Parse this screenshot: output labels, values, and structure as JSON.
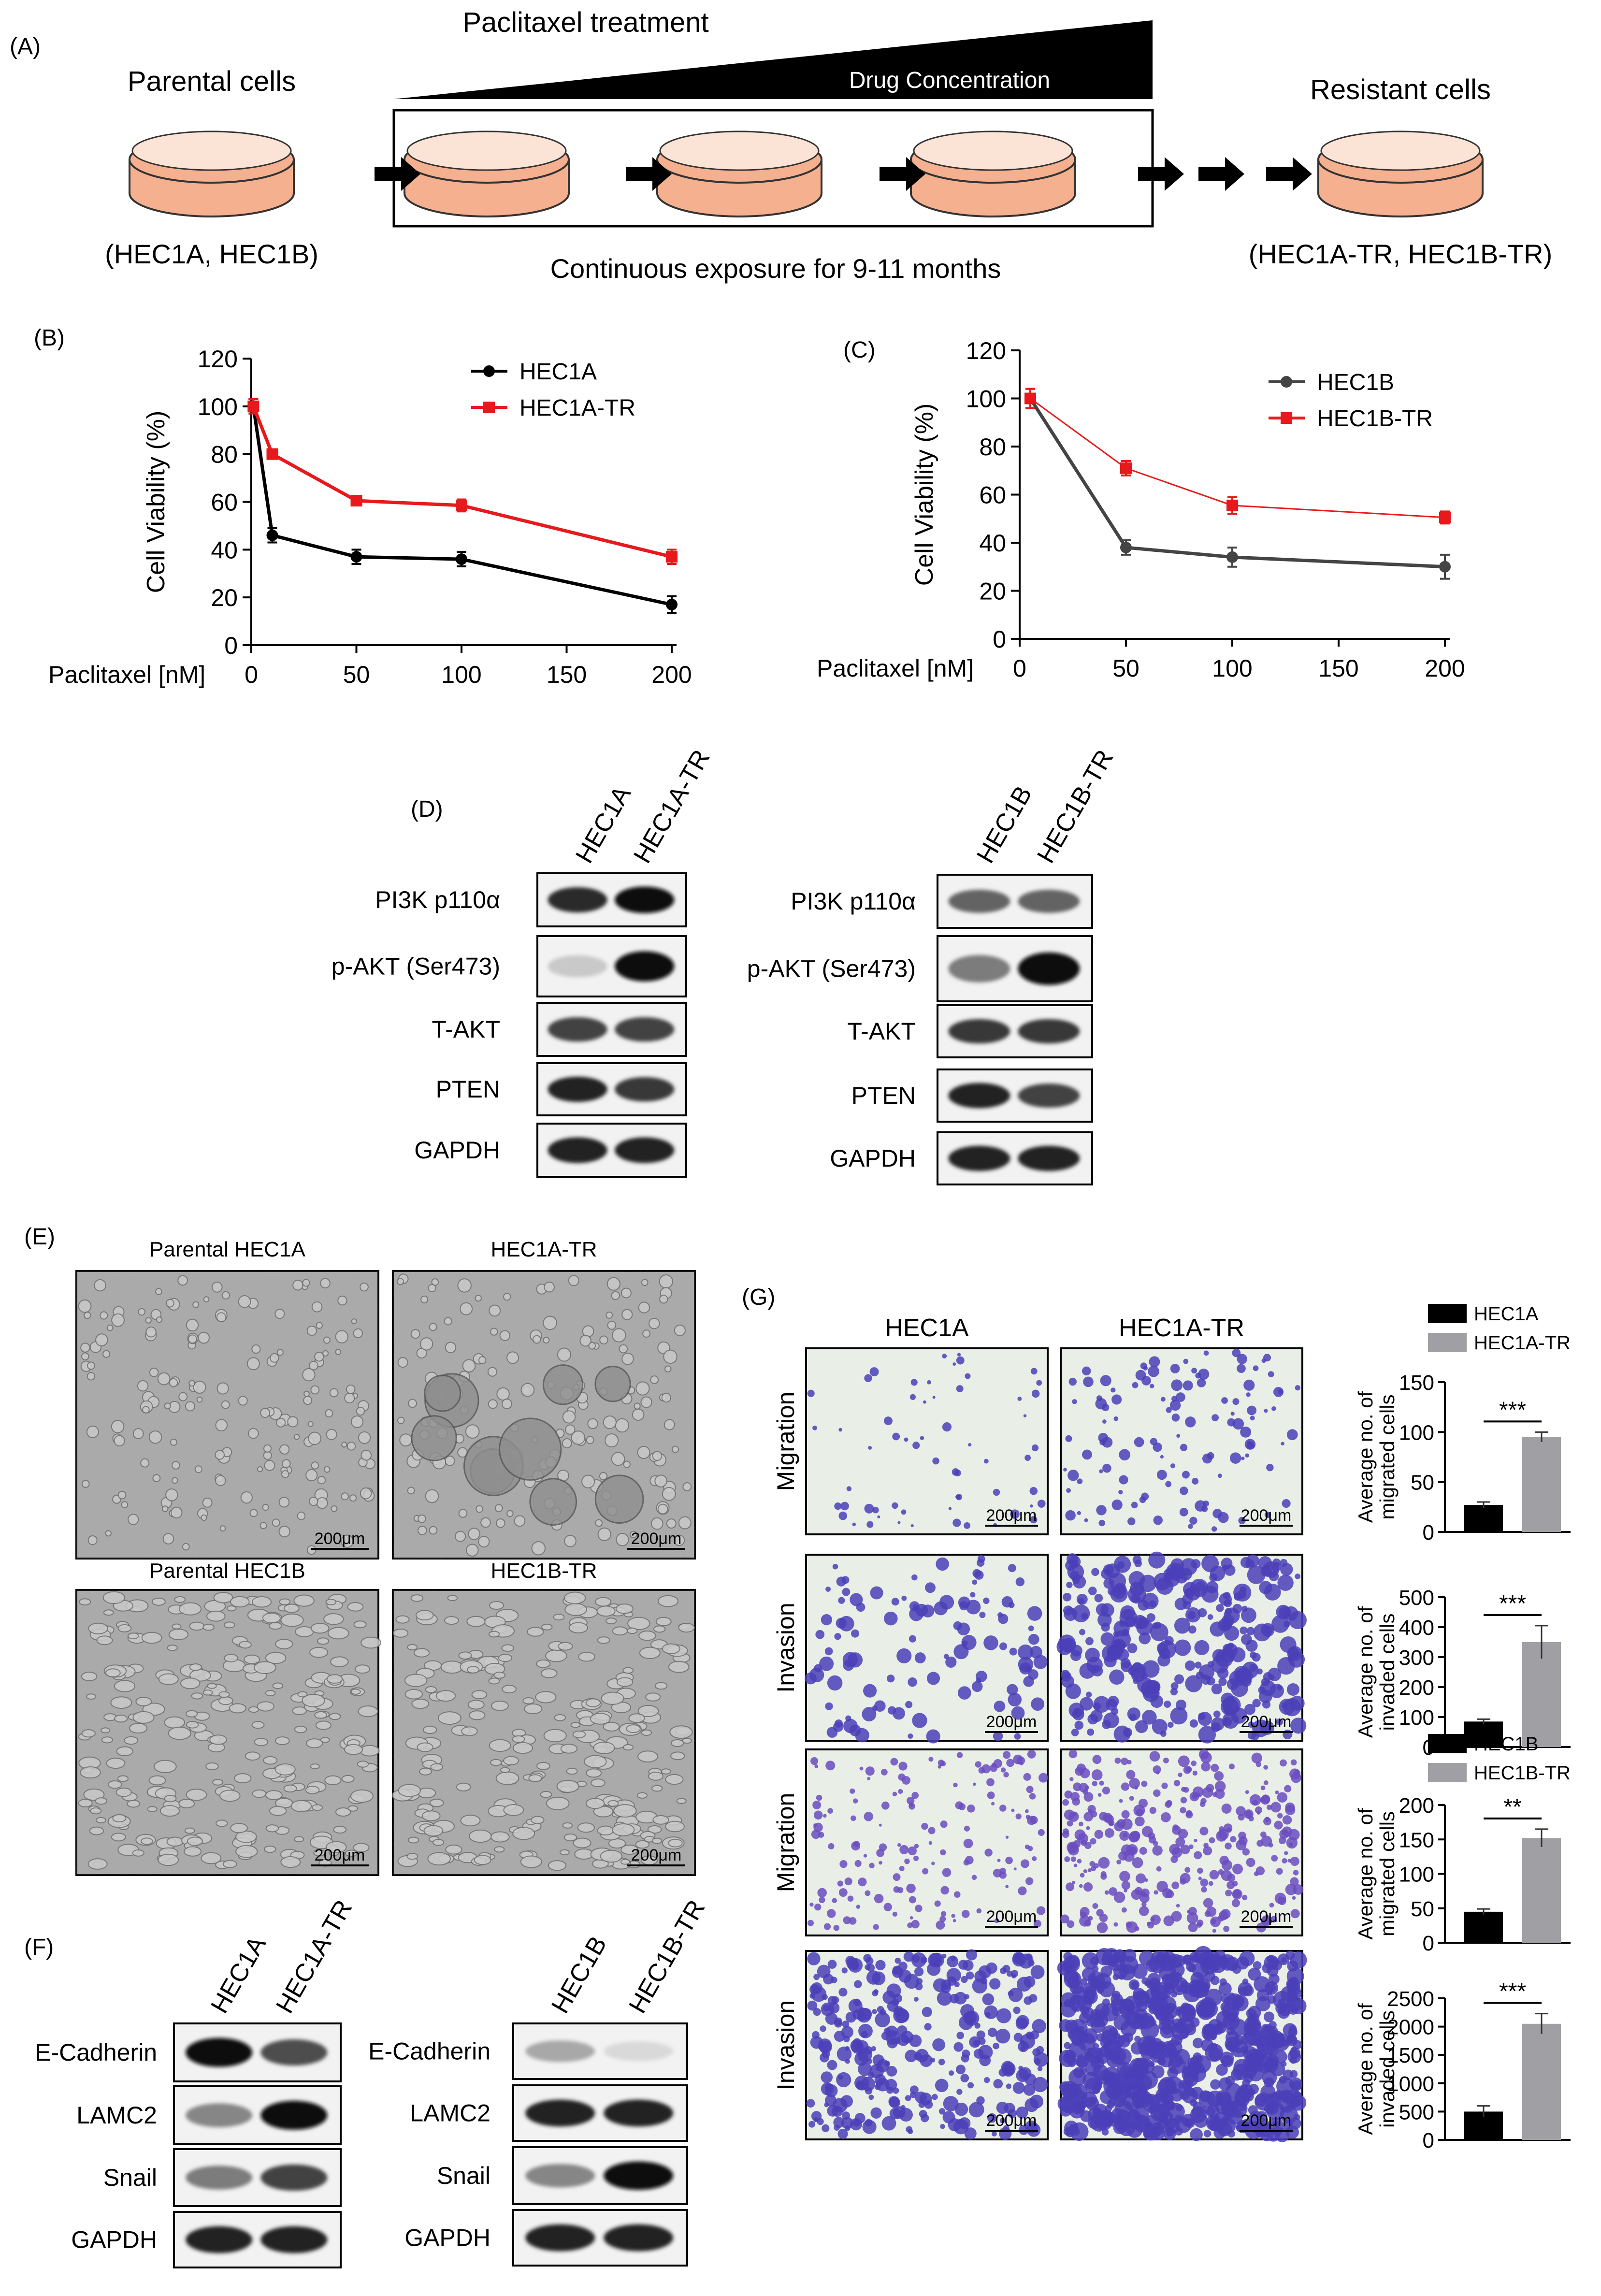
{
  "panel_letters": {
    "a": "(A)",
    "b": "(B)",
    "c": "(C)",
    "d": "(D)",
    "e": "(E)",
    "f": "(F)",
    "g": "(G)"
  },
  "panel_a": {
    "parental_title": "Parental cells",
    "parental_lines": "(HEC1A, HEC1B)",
    "treatment_title": "Paclitaxel treatment",
    "concentration_label": "Drug Concentration",
    "exposure_caption": "Continuous exposure for 9-11 months",
    "resistant_title": "Resistant cells",
    "resistant_lines": "(HEC1A-TR, HEC1B-TR)"
  },
  "chart_data": [
    {
      "type": "line",
      "panel": "(B)",
      "xlabel": "Paclitaxel [nM]",
      "ylabel": "Cell Viability (%)",
      "xlim": [
        0,
        200
      ],
      "ylim": [
        0,
        120
      ],
      "xticks": [
        0,
        50,
        100,
        150,
        200
      ],
      "yticks": [
        0,
        20,
        40,
        60,
        80,
        100,
        120
      ],
      "series": [
        {
          "name": "HEC1A",
          "color": "#000000",
          "marker": "circle",
          "x": [
            1,
            10,
            50,
            100,
            200
          ],
          "y": [
            100,
            46,
            37,
            36,
            17
          ],
          "err": [
            3,
            3,
            3,
            3,
            3.5
          ]
        },
        {
          "name": "HEC1A-TR",
          "color": "#e8191c",
          "marker": "square",
          "x": [
            1,
            10,
            50,
            100,
            200
          ],
          "y": [
            100,
            80,
            60.5,
            58.5,
            37
          ],
          "err": [
            3,
            2,
            2,
            2.5,
            3
          ]
        }
      ]
    },
    {
      "type": "line",
      "panel": "(C)",
      "xlabel": "Paclitaxel [nM]",
      "ylabel": "Cell Viability (%)",
      "xlim": [
        0,
        200
      ],
      "ylim": [
        0,
        120
      ],
      "xticks": [
        0,
        50,
        100,
        150,
        200
      ],
      "yticks": [
        0,
        20,
        40,
        60,
        80,
        100,
        120
      ],
      "series": [
        {
          "name": "HEC1B",
          "color": "#444444",
          "marker": "circle",
          "x": [
            5,
            50,
            100,
            200
          ],
          "y": [
            100,
            38,
            34,
            30
          ],
          "err": [
            4,
            3,
            4,
            5
          ]
        },
        {
          "name": "HEC1B-TR",
          "color": "#e8191c",
          "marker": "square",
          "x": [
            5,
            50,
            100,
            200
          ],
          "y": [
            100,
            71,
            55.5,
            50.5
          ],
          "err": [
            4,
            3,
            3.5,
            2.5
          ]
        }
      ]
    },
    {
      "type": "bar",
      "panel": "(G)",
      "group": "HEC1A",
      "ylabel": "Average no. of migrated cells",
      "categories": [
        "HEC1A",
        "HEC1A-TR"
      ],
      "values": [
        27,
        95
      ],
      "err": [
        3,
        5
      ],
      "ylim": [
        0,
        150
      ],
      "yticks": [
        0,
        50,
        100,
        150
      ],
      "significance": "***",
      "colors": [
        "#000000",
        "#a0a0a4"
      ]
    },
    {
      "type": "bar",
      "panel": "(G)",
      "group": "HEC1A",
      "ylabel": "Average no. of invaded cells",
      "categories": [
        "HEC1A",
        "HEC1A-TR"
      ],
      "values": [
        85,
        350
      ],
      "err": [
        8,
        55
      ],
      "ylim": [
        0,
        500
      ],
      "yticks": [
        0,
        100,
        200,
        300,
        400,
        500
      ],
      "significance": "***",
      "colors": [
        "#000000",
        "#a0a0a4"
      ]
    },
    {
      "type": "bar",
      "panel": "(G)",
      "group": "HEC1B",
      "ylabel": "Average no. of migrated cells",
      "categories": [
        "HEC1B",
        "HEC1B-TR"
      ],
      "values": [
        45,
        152
      ],
      "err": [
        4,
        13
      ],
      "ylim": [
        0,
        200
      ],
      "yticks": [
        0,
        50,
        100,
        150,
        200
      ],
      "significance": "**",
      "colors": [
        "#000000",
        "#a0a0a4"
      ]
    },
    {
      "type": "bar",
      "panel": "(G)",
      "group": "HEC1B",
      "ylabel": "Average no. of invaded cells",
      "categories": [
        "HEC1B",
        "HEC1B-TR"
      ],
      "values": [
        500,
        2050
      ],
      "err": [
        100,
        180
      ],
      "ylim": [
        0,
        2500
      ],
      "yticks": [
        0,
        500,
        1000,
        1500,
        2000,
        2500
      ],
      "significance": "***",
      "colors": [
        "#000000",
        "#a0a0a4"
      ]
    }
  ],
  "western_d_left": {
    "lanes": [
      "HEC1A",
      "HEC1A-TR"
    ],
    "rows": [
      {
        "label": "PI3K p110α",
        "bands": [
          0.85,
          1.0
        ]
      },
      {
        "label": "p-AKT (Ser473)",
        "bands": [
          0.15,
          1.0
        ]
      },
      {
        "label": "T-AKT",
        "bands": [
          0.75,
          0.75
        ]
      },
      {
        "label": "PTEN",
        "bands": [
          0.9,
          0.8
        ]
      },
      {
        "label": "GAPDH",
        "bands": [
          0.9,
          0.9
        ]
      }
    ]
  },
  "western_d_right": {
    "lanes": [
      "HEC1B",
      "HEC1B-TR"
    ],
    "rows": [
      {
        "label": "PI3K p110α",
        "bands": [
          0.6,
          0.6
        ]
      },
      {
        "label": "p-AKT (Ser473)",
        "bands": [
          0.5,
          1.0
        ]
      },
      {
        "label": "T-AKT",
        "bands": [
          0.8,
          0.8
        ]
      },
      {
        "label": "PTEN",
        "bands": [
          0.9,
          0.75
        ]
      },
      {
        "label": "GAPDH",
        "bands": [
          0.9,
          0.9
        ]
      }
    ]
  },
  "western_f_left": {
    "lanes": [
      "HEC1A",
      "HEC1A-TR"
    ],
    "rows": [
      {
        "label": "E-Cadherin",
        "bands": [
          1.0,
          0.7
        ]
      },
      {
        "label": "LAMC2",
        "bands": [
          0.45,
          1.0
        ]
      },
      {
        "label": "Snail",
        "bands": [
          0.5,
          0.75
        ]
      },
      {
        "label": "GAPDH",
        "bands": [
          0.9,
          0.9
        ]
      }
    ]
  },
  "western_f_right": {
    "lanes": [
      "HEC1B",
      "HEC1B-TR"
    ],
    "rows": [
      {
        "label": "E-Cadherin",
        "bands": [
          0.3,
          0.08
        ]
      },
      {
        "label": "LAMC2",
        "bands": [
          0.9,
          0.9
        ]
      },
      {
        "label": "Snail",
        "bands": [
          0.45,
          1.0
        ]
      },
      {
        "label": "GAPDH",
        "bands": [
          0.9,
          0.9
        ]
      }
    ]
  },
  "micrographs_e": [
    {
      "title": "Parental HEC1A",
      "scale": "200μm"
    },
    {
      "title": "HEC1A-TR",
      "scale": "200μm"
    },
    {
      "title": "Parental HEC1B",
      "scale": "200μm"
    },
    {
      "title": "HEC1B-TR",
      "scale": "200μm"
    }
  ],
  "transwell_g": {
    "top_titles": [
      "HEC1A",
      "HEC1A-TR"
    ],
    "bottom_titles": [
      "HEC1B",
      "HEC1B-TR"
    ],
    "row_labels": [
      "Migration",
      "Invasion",
      "Migration",
      "Invasion"
    ],
    "scale": "200μm"
  },
  "colors": {
    "dish_fill": "#f4b08f",
    "dish_stroke": "#333333",
    "micrograph_bg": "#a9a9a9",
    "stain": "#4b3fb8",
    "stain_bg": "#e9eee6"
  }
}
